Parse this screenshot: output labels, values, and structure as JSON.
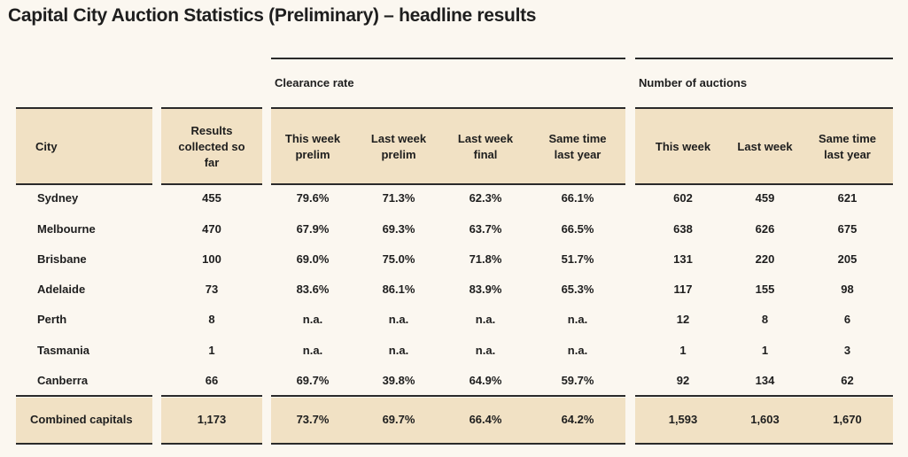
{
  "title": "Capital City Auction Statistics (Preliminary) – headline results",
  "groups": [
    "Clearance rate",
    "Number of auctions"
  ],
  "columns": [
    "City",
    "Results collected so far",
    "This week prelim",
    "Last week prelim",
    "Last week final",
    "Same time last year",
    "This week",
    "Last week",
    "Same time last year"
  ],
  "rows": [
    [
      "Sydney",
      "455",
      "79.6%",
      "71.3%",
      "62.3%",
      "66.1%",
      "602",
      "459",
      "621"
    ],
    [
      "Melbourne",
      "470",
      "67.9%",
      "69.3%",
      "63.7%",
      "66.5%",
      "638",
      "626",
      "675"
    ],
    [
      "Brisbane",
      "100",
      "69.0%",
      "75.0%",
      "71.8%",
      "51.7%",
      "131",
      "220",
      "205"
    ],
    [
      "Adelaide",
      "73",
      "83.6%",
      "86.1%",
      "83.9%",
      "65.3%",
      "117",
      "155",
      "98"
    ],
    [
      "Perth",
      "8",
      "n.a.",
      "n.a.",
      "n.a.",
      "n.a.",
      "12",
      "8",
      "6"
    ],
    [
      "Tasmania",
      "1",
      "n.a.",
      "n.a.",
      "n.a.",
      "n.a.",
      "1",
      "1",
      "3"
    ],
    [
      "Canberra",
      "66",
      "69.7%",
      "39.8%",
      "64.9%",
      "59.7%",
      "92",
      "134",
      "62"
    ]
  ],
  "total": [
    "Combined capitals",
    "1,173",
    "73.7%",
    "69.7%",
    "66.4%",
    "64.2%",
    "1,593",
    "1,603",
    "1,670"
  ]
}
